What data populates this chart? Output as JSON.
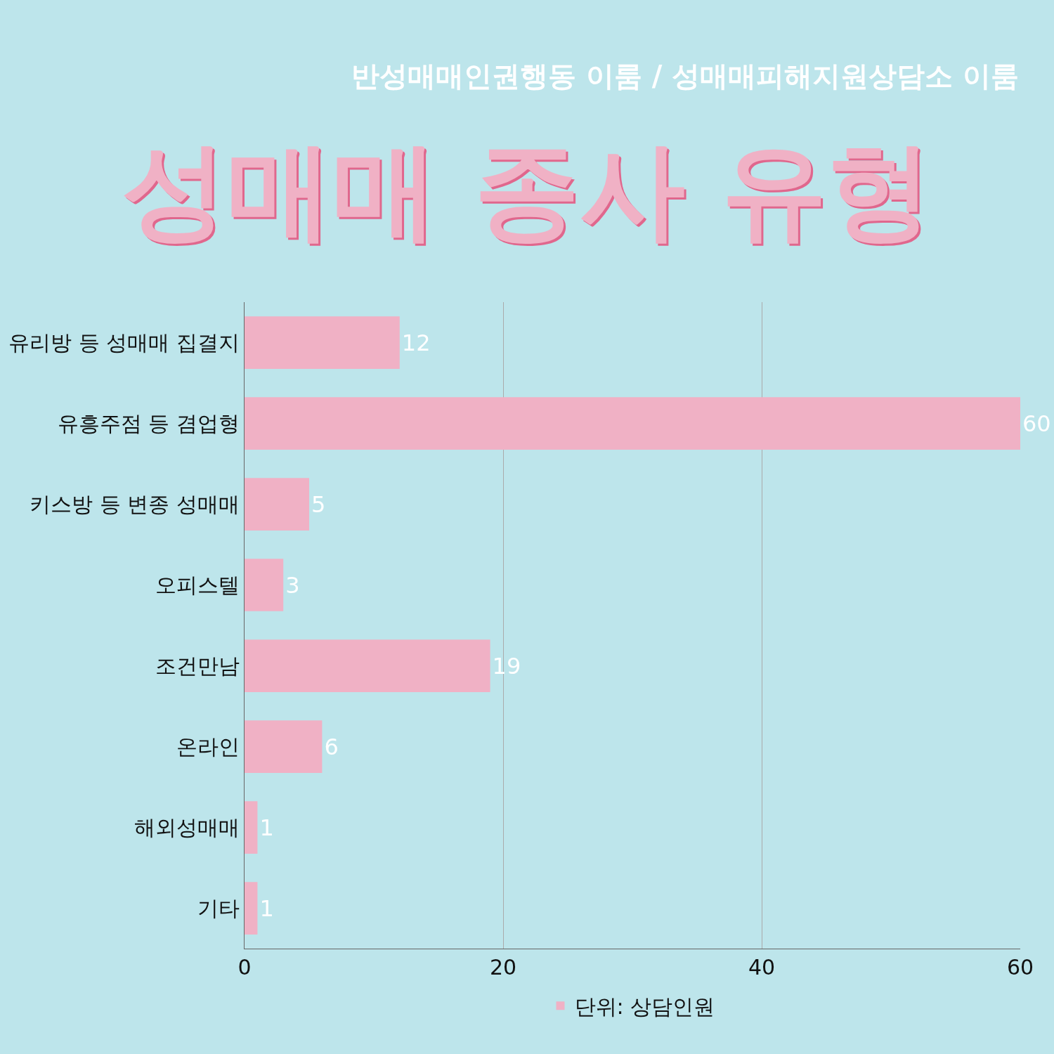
{
  "chart_data": {
    "type": "bar",
    "orientation": "horizontal",
    "title": "성매매 종사 유형",
    "subtitle": "반성매매인권행동 이룸 / 성매매피해지원상담소 이룸",
    "categories": [
      "유리방 등 성매매 집결지",
      "유흥주점 등 겸업형",
      "키스방 등 변종 성매매",
      "오피스텔",
      "조건만남",
      "온라인",
      "해외성매매",
      "기타"
    ],
    "series": [
      {
        "name": "단위: 상담인원",
        "color": "#f0b1c5",
        "values": [
          12,
          60,
          5,
          3,
          19,
          6,
          1,
          1
        ]
      }
    ],
    "xlim": [
      0,
      60
    ],
    "xticks": [
      0,
      20,
      40,
      60
    ],
    "grid": "x",
    "legend": "bottom",
    "data_labels": true
  }
}
